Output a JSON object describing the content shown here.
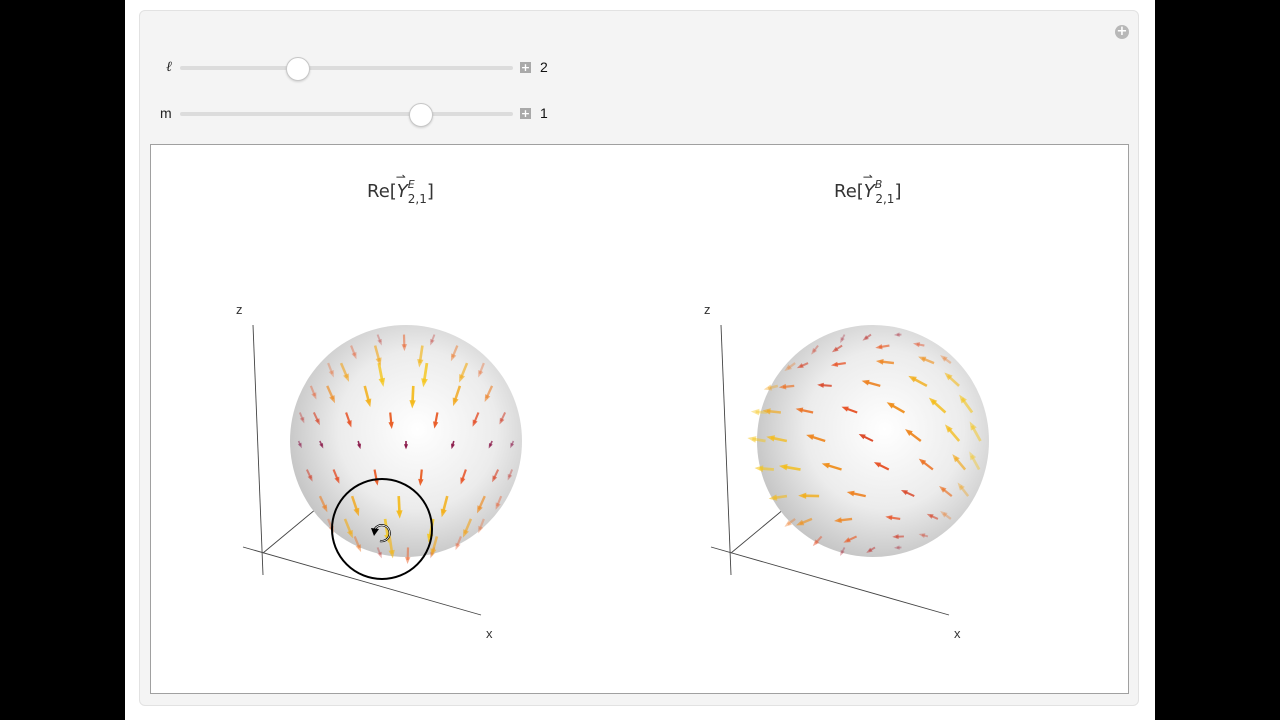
{
  "controls": {
    "l_slider": {
      "label": "ℓ",
      "value": "2",
      "fraction": 0.35
    },
    "m_slider": {
      "label": "m",
      "value": "1",
      "fraction": 0.72
    }
  },
  "plots": [
    {
      "title_prefix": "Re[",
      "symbol": "Y",
      "superscript": "E",
      "subscript": "2,1",
      "title_suffix": "]",
      "axis_z": "z",
      "axis_x": "x"
    },
    {
      "title_prefix": "Re[",
      "symbol": "Y",
      "superscript": "B",
      "subscript": "2,1",
      "title_suffix": "]",
      "axis_z": "z",
      "axis_x": "x"
    }
  ],
  "colors": {
    "arrow_hot": "#f5c518",
    "arrow_mid": "#e8552a",
    "arrow_cool": "#8b1a4a",
    "sphere": "#e8e8e8"
  },
  "cursor": {
    "icon": "rotate-cursor-icon"
  }
}
